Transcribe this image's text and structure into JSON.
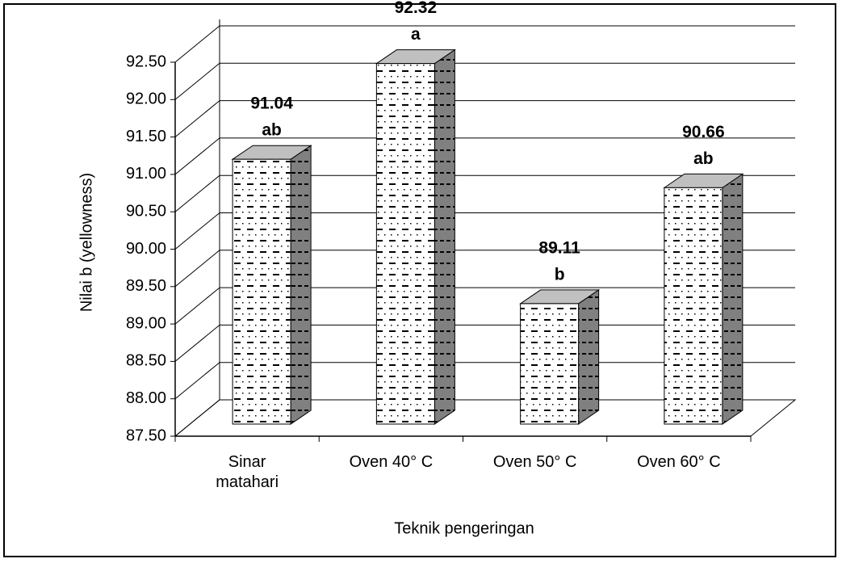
{
  "chart_data": {
    "type": "bar3d",
    "y_label": "Nilai b (yellowness)",
    "x_label": "Teknik pengeringan",
    "categories": [
      "Sinar matahari",
      "Oven 40° C",
      "Oven 50° C",
      "Oven 60° C"
    ],
    "values": [
      91.04,
      92.32,
      89.11,
      90.66
    ],
    "significance": [
      "ab",
      "a",
      "b",
      "ab"
    ],
    "ylim": [
      87.5,
      92.5
    ],
    "yticks": [
      {
        "value": 87.5,
        "label": "87.50"
      },
      {
        "value": 88,
        "label": "88.00"
      },
      {
        "value": 88.5,
        "label": "88.50"
      },
      {
        "value": 89,
        "label": "89.00"
      },
      {
        "value": 89.5,
        "label": "89.50"
      },
      {
        "value": 90,
        "label": "90.00"
      },
      {
        "value": 90.5,
        "label": "90.50"
      },
      {
        "value": 91,
        "label": "91.00"
      },
      {
        "value": 91.5,
        "label": "91.50"
      },
      {
        "value": 92,
        "label": "92.00"
      },
      {
        "value": 92.5,
        "label": "92.50"
      }
    ],
    "grid": true,
    "color": "#ffffff",
    "side_color": "#808080",
    "top_color": "#c0c0c0"
  }
}
